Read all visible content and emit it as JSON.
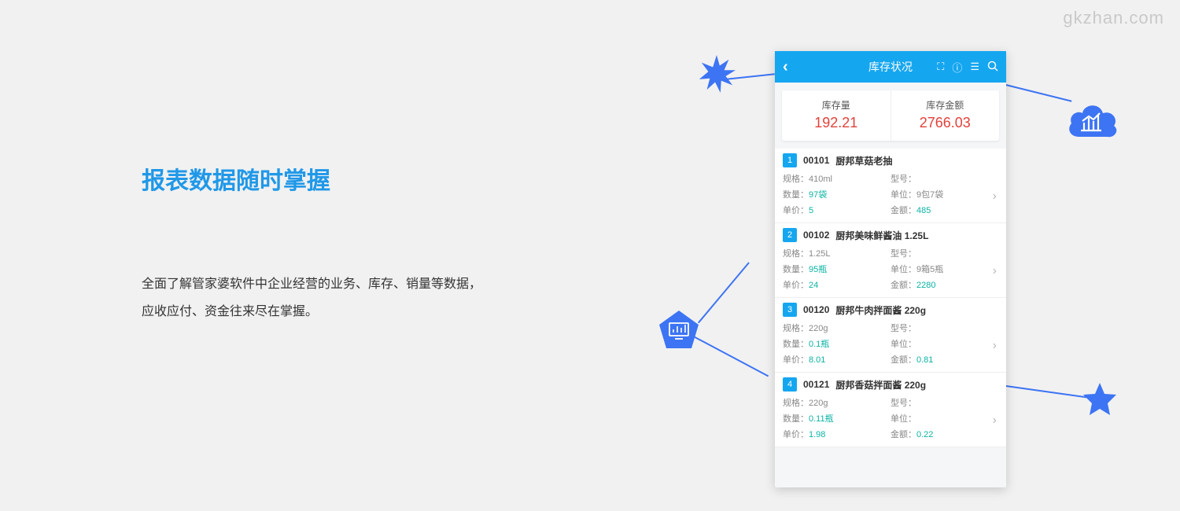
{
  "watermark": "gkzhan.com",
  "heading": "报表数据随时掌握",
  "description": "全面了解管家婆软件中企业经营的业务、库存、销量等数据，应收应付、资金往来尽在掌握。",
  "colors": {
    "accent": "#15a6f0",
    "headingBlue": "#2098e8",
    "shapeBlue": "#3d74f3",
    "valueTeal": "#0bb3a4",
    "summaryRed": "#e3413b",
    "background": "#f1f1f1"
  },
  "phone": {
    "title": "库存状况",
    "headerIcons": [
      "scan-icon",
      "info-icon",
      "list-icon",
      "search-icon"
    ],
    "summary": {
      "left": {
        "label": "库存量",
        "value": "192.21"
      },
      "right": {
        "label": "库存金额",
        "value": "2766.03"
      }
    },
    "items": [
      {
        "num": "1",
        "code": "00101",
        "name": "厨邦草菇老抽",
        "spec": "410ml",
        "model": "",
        "qty": "97袋",
        "unit": "9包7袋",
        "price": "5",
        "amount": "485"
      },
      {
        "num": "2",
        "code": "00102",
        "name": "厨邦美味鲜酱油 1.25L",
        "spec": "1.25L",
        "model": "",
        "qty": "95瓶",
        "unit": "9箱5瓶",
        "price": "24",
        "amount": "2280"
      },
      {
        "num": "3",
        "code": "00120",
        "name": "厨邦牛肉拌面酱 220g",
        "spec": "220g",
        "model": "",
        "qty": "0.1瓶",
        "unit": "",
        "price": "8.01",
        "amount": "0.81"
      },
      {
        "num": "4",
        "code": "00121",
        "name": "厨邦香菇拌面酱 220g",
        "spec": "220g",
        "model": "",
        "qty": "0.11瓶",
        "unit": "",
        "price": "1.98",
        "amount": "0.22"
      }
    ],
    "labels": {
      "spec": "规格：",
      "model": "型号：",
      "qty": "数量：",
      "unit": "单位：",
      "price": "单价：",
      "amount": "金额："
    }
  }
}
